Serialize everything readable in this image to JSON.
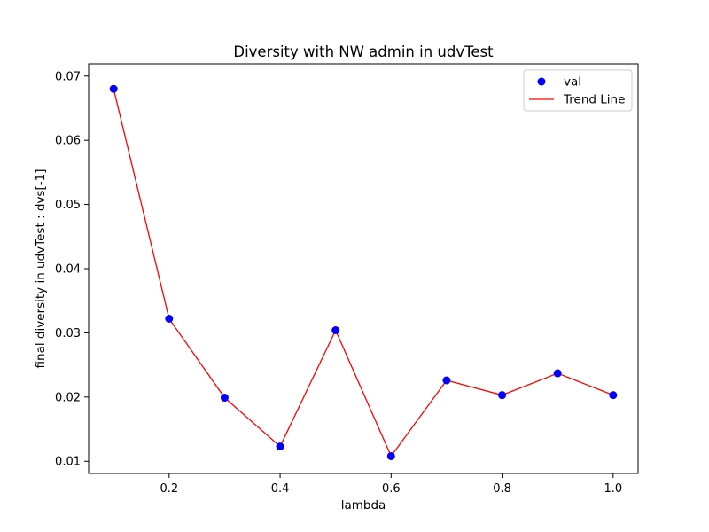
{
  "chart_data": {
    "type": "scatter",
    "title": "Diversity with NW admin in udvTest",
    "xlabel": "lambda",
    "ylabel": "final diversity in udvTest : dvs[-1]",
    "xlim": [
      0.055,
      1.045
    ],
    "ylim": [
      0.0081,
      0.0719
    ],
    "xticks": [
      0.2,
      0.4,
      0.6,
      0.8,
      1.0
    ],
    "xtick_labels": [
      "0.2",
      "0.4",
      "0.6",
      "0.8",
      "1.0"
    ],
    "yticks": [
      0.01,
      0.02,
      0.03,
      0.04,
      0.05,
      0.06,
      0.07
    ],
    "ytick_labels": [
      "0.01",
      "0.02",
      "0.03",
      "0.04",
      "0.05",
      "0.06",
      "0.07"
    ],
    "grid": false,
    "legend_position": "top-right",
    "x": [
      0.1,
      0.2,
      0.3,
      0.4,
      0.5,
      0.6,
      0.7,
      0.8,
      0.9,
      1.0
    ],
    "series": [
      {
        "name": "val",
        "kind": "scatter",
        "color": "#0000ff",
        "values": [
          0.068,
          0.0322,
          0.0199,
          0.0123,
          0.0304,
          0.0108,
          0.0226,
          0.0203,
          0.0237,
          0.0203
        ]
      },
      {
        "name": "Trend Line",
        "kind": "line",
        "color": "#ff0000",
        "values": [
          0.068,
          0.0322,
          0.0199,
          0.0123,
          0.0304,
          0.0108,
          0.0226,
          0.0203,
          0.0237,
          0.0203
        ]
      }
    ]
  }
}
